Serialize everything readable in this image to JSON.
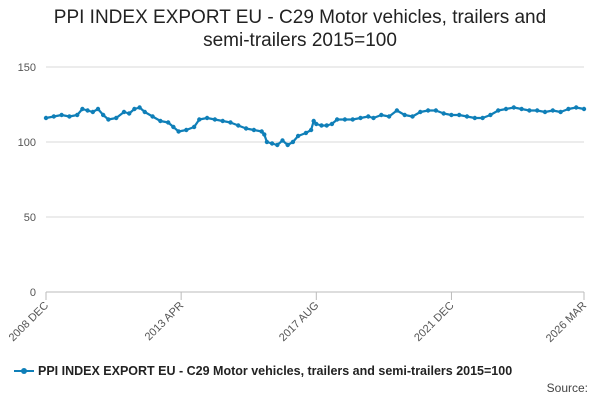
{
  "chart_data": {
    "type": "line",
    "title_lines": [
      "PPI INDEX EXPORT EU - C29 Motor vehicles, trailers and",
      "semi-trailers 2015=100"
    ],
    "ylim": [
      0,
      150
    ],
    "yticks": [
      0,
      50,
      100,
      150
    ],
    "xlim": [
      "2008-12",
      "2026-03"
    ],
    "xticks": [
      {
        "date": "2008-12",
        "label": "2008 DEC"
      },
      {
        "date": "2013-04",
        "label": "2013 APR"
      },
      {
        "date": "2017-08",
        "label": "2017 AUG"
      },
      {
        "date": "2021-12",
        "label": "2021 DEC"
      },
      {
        "date": "2026-03",
        "label": "2026 MAR"
      }
    ],
    "grid": "horizontal",
    "legend_position": "bottom",
    "series": [
      {
        "name": "PPI INDEX EXPORT EU - C29 Motor vehicles, trailers and semi-trailers 2015=100",
        "color": "#0f7fb8",
        "points": [
          [
            "2008-12",
            116
          ],
          [
            "2009-03",
            117
          ],
          [
            "2009-06",
            118
          ],
          [
            "2009-09",
            117
          ],
          [
            "2009-12",
            118
          ],
          [
            "2010-02",
            122
          ],
          [
            "2010-04",
            121
          ],
          [
            "2010-06",
            120
          ],
          [
            "2010-08",
            122
          ],
          [
            "2010-10",
            118
          ],
          [
            "2010-12",
            115
          ],
          [
            "2011-03",
            116
          ],
          [
            "2011-06",
            120
          ],
          [
            "2011-08",
            119
          ],
          [
            "2011-10",
            122
          ],
          [
            "2011-12",
            123
          ],
          [
            "2012-02",
            120
          ],
          [
            "2012-05",
            117
          ],
          [
            "2012-08",
            114
          ],
          [
            "2012-11",
            113
          ],
          [
            "2013-01",
            110
          ],
          [
            "2013-03",
            107
          ],
          [
            "2013-06",
            108
          ],
          [
            "2013-09",
            110
          ],
          [
            "2013-11",
            115
          ],
          [
            "2014-02",
            116
          ],
          [
            "2014-05",
            115
          ],
          [
            "2014-08",
            114
          ],
          [
            "2014-11",
            113
          ],
          [
            "2015-02",
            111
          ],
          [
            "2015-05",
            109
          ],
          [
            "2015-08",
            108
          ],
          [
            "2015-11",
            107
          ],
          [
            "2015-12",
            105
          ],
          [
            "2016-01",
            100
          ],
          [
            "2016-03",
            99
          ],
          [
            "2016-05",
            98
          ],
          [
            "2016-07",
            101
          ],
          [
            "2016-09",
            98
          ],
          [
            "2016-11",
            100
          ],
          [
            "2017-01",
            104
          ],
          [
            "2017-04",
            106
          ],
          [
            "2017-06",
            108
          ],
          [
            "2017-07",
            114
          ],
          [
            "2017-08",
            112
          ],
          [
            "2017-10",
            111
          ],
          [
            "2017-12",
            111
          ],
          [
            "2018-02",
            112
          ],
          [
            "2018-04",
            115
          ],
          [
            "2018-07",
            115
          ],
          [
            "2018-10",
            115
          ],
          [
            "2019-01",
            116
          ],
          [
            "2019-04",
            117
          ],
          [
            "2019-06",
            116
          ],
          [
            "2019-09",
            118
          ],
          [
            "2019-12",
            117
          ],
          [
            "2020-03",
            121
          ],
          [
            "2020-06",
            118
          ],
          [
            "2020-09",
            117
          ],
          [
            "2020-12",
            120
          ],
          [
            "2021-03",
            121
          ],
          [
            "2021-06",
            121
          ],
          [
            "2021-09",
            119
          ],
          [
            "2021-12",
            118
          ],
          [
            "2022-03",
            118
          ],
          [
            "2022-06",
            117
          ],
          [
            "2022-09",
            116
          ],
          [
            "2022-12",
            116
          ],
          [
            "2023-03",
            118
          ],
          [
            "2023-06",
            121
          ],
          [
            "2023-09",
            122
          ],
          [
            "2023-12",
            123
          ],
          [
            "2024-03",
            122
          ],
          [
            "2024-06",
            121
          ],
          [
            "2024-09",
            121
          ],
          [
            "2024-12",
            120
          ],
          [
            "2025-03",
            121
          ],
          [
            "2025-06",
            120
          ],
          [
            "2025-09",
            122
          ],
          [
            "2025-12",
            123
          ],
          [
            "2026-03",
            122
          ]
        ]
      }
    ]
  },
  "source_label": "Source:"
}
